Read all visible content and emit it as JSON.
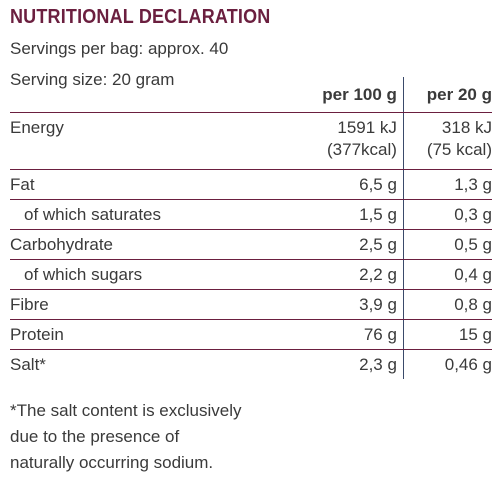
{
  "title": "NUTRITIONAL DECLARATION",
  "servings_per_bag": "Servings per bag: approx. 40",
  "serving_size": "Serving size: 20 gram",
  "table": {
    "header": {
      "col1": "",
      "col2": "per 100 g",
      "col3": "per 20 g"
    },
    "rows": [
      {
        "name": "Energy",
        "per100_line1": "1591 kJ",
        "per100_line2": "(377kcal)",
        "per20_line1": "318 kJ",
        "per20_line2": "(75 kcal)"
      },
      {
        "name": "Fat",
        "per100": "6,5 g",
        "per20": "1,3 g"
      },
      {
        "name": "of which saturates",
        "per100": "1,5 g",
        "per20": "0,3 g"
      },
      {
        "name": "Carbohydrate",
        "per100": "2,5 g",
        "per20": "0,5 g"
      },
      {
        "name": "of which sugars",
        "per100": "2,2 g",
        "per20": "0,4 g"
      },
      {
        "name": "Fibre",
        "per100": "3,9 g",
        "per20": "0,8 g"
      },
      {
        "name": "Protein",
        "per100": "76 g",
        "per20": "15 g"
      },
      {
        "name": "Salt*",
        "per100": "2,3 g",
        "per20": "0,46 g"
      }
    ]
  },
  "footnote": {
    "line1": "*The salt content is exclusively",
    "line2": "due to the presence of",
    "line3": "naturally occurring sodium."
  },
  "colors": {
    "title": "#6b1f3f",
    "text": "#3a3a3a",
    "rule": "#6b1f3f",
    "column_divider": "#3a4a6a"
  }
}
